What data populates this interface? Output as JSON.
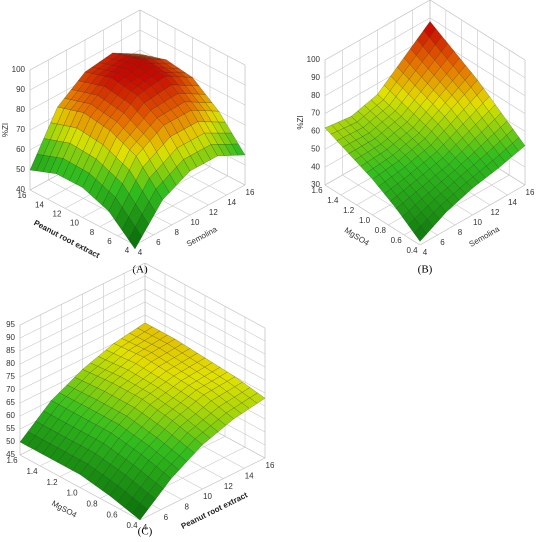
{
  "chart_data": [
    {
      "type": "surface",
      "label": "(A)",
      "zlabel": "%ZI",
      "xlabel": "Semolina",
      "ylabel": "Peanut root extract",
      "xlim": [
        4,
        16
      ],
      "ylim": [
        4,
        16
      ],
      "zlim": [
        40,
        100
      ],
      "xticks": [
        4,
        6,
        8,
        10,
        12,
        14,
        16
      ],
      "yticks": [
        4,
        6,
        8,
        10,
        12,
        14,
        16
      ],
      "zticks": [
        40,
        50,
        60,
        70,
        80,
        90,
        100
      ],
      "x": [
        4,
        7,
        10,
        13,
        16
      ],
      "y": [
        4,
        7,
        10,
        13,
        16
      ],
      "z": [
        [
          38,
          55,
          62,
          62,
          55
        ],
        [
          50,
          70,
          78,
          78,
          70
        ],
        [
          55,
          76,
          86,
          88,
          80
        ],
        [
          55,
          78,
          88,
          90,
          82
        ],
        [
          50,
          74,
          84,
          86,
          78
        ]
      ]
    },
    {
      "type": "surface",
      "label": "(B)",
      "zlabel": "%ZI",
      "xlabel": "Semolina",
      "ylabel": "MgSO4",
      "xlim": [
        4,
        16
      ],
      "ylim": [
        0.4,
        1.6
      ],
      "zlim": [
        30,
        100
      ],
      "xticks": [
        4,
        6,
        8,
        10,
        12,
        14,
        16
      ],
      "yticks": [
        0.4,
        0.6,
        0.8,
        {
          "value": 1,
          "label": "1.0"
        },
        1.2,
        1.4,
        1.6
      ],
      "zticks": [
        30,
        40,
        50,
        60,
        70,
        80,
        90,
        100
      ],
      "x": [
        4,
        7,
        10,
        13,
        16
      ],
      "y": [
        0.4,
        0.7,
        1,
        1.3,
        1.6
      ],
      "z": [
        [
          32,
          40,
          45,
          48,
          52
        ],
        [
          42,
          46,
          50,
          56,
          62
        ],
        [
          50,
          52,
          56,
          64,
          72
        ],
        [
          56,
          56,
          60,
          70,
          80
        ],
        [
          62,
          60,
          64,
          76,
          88
        ]
      ]
    },
    {
      "type": "surface",
      "label": "(C)",
      "zlabel": "%ZI",
      "xlabel": "Peanut root extract",
      "ylabel": "MgSO4",
      "xlim": [
        4,
        16
      ],
      "ylim": [
        0.4,
        1.6
      ],
      "zlim": [
        45,
        95
      ],
      "xticks": [
        4,
        6,
        8,
        10,
        12,
        14,
        16
      ],
      "yticks": [
        0.4,
        0.6,
        0.8,
        {
          "value": 1,
          "label": "1.0"
        },
        1.2,
        1.4,
        1.6
      ],
      "zticks": [
        45,
        50,
        55,
        60,
        65,
        70,
        75,
        80,
        85,
        90,
        95
      ],
      "x": [
        4,
        7,
        10,
        13,
        16
      ],
      "y": [
        0.4,
        0.7,
        1,
        1.3,
        1.6
      ],
      "z": [
        [
          45,
          55,
          62,
          66,
          68
        ],
        [
          48,
          58,
          65,
          69,
          70
        ],
        [
          50,
          60,
          67,
          70,
          71
        ],
        [
          50,
          60,
          67,
          71,
          72
        ],
        [
          50,
          60,
          66,
          70,
          72
        ]
      ]
    }
  ]
}
